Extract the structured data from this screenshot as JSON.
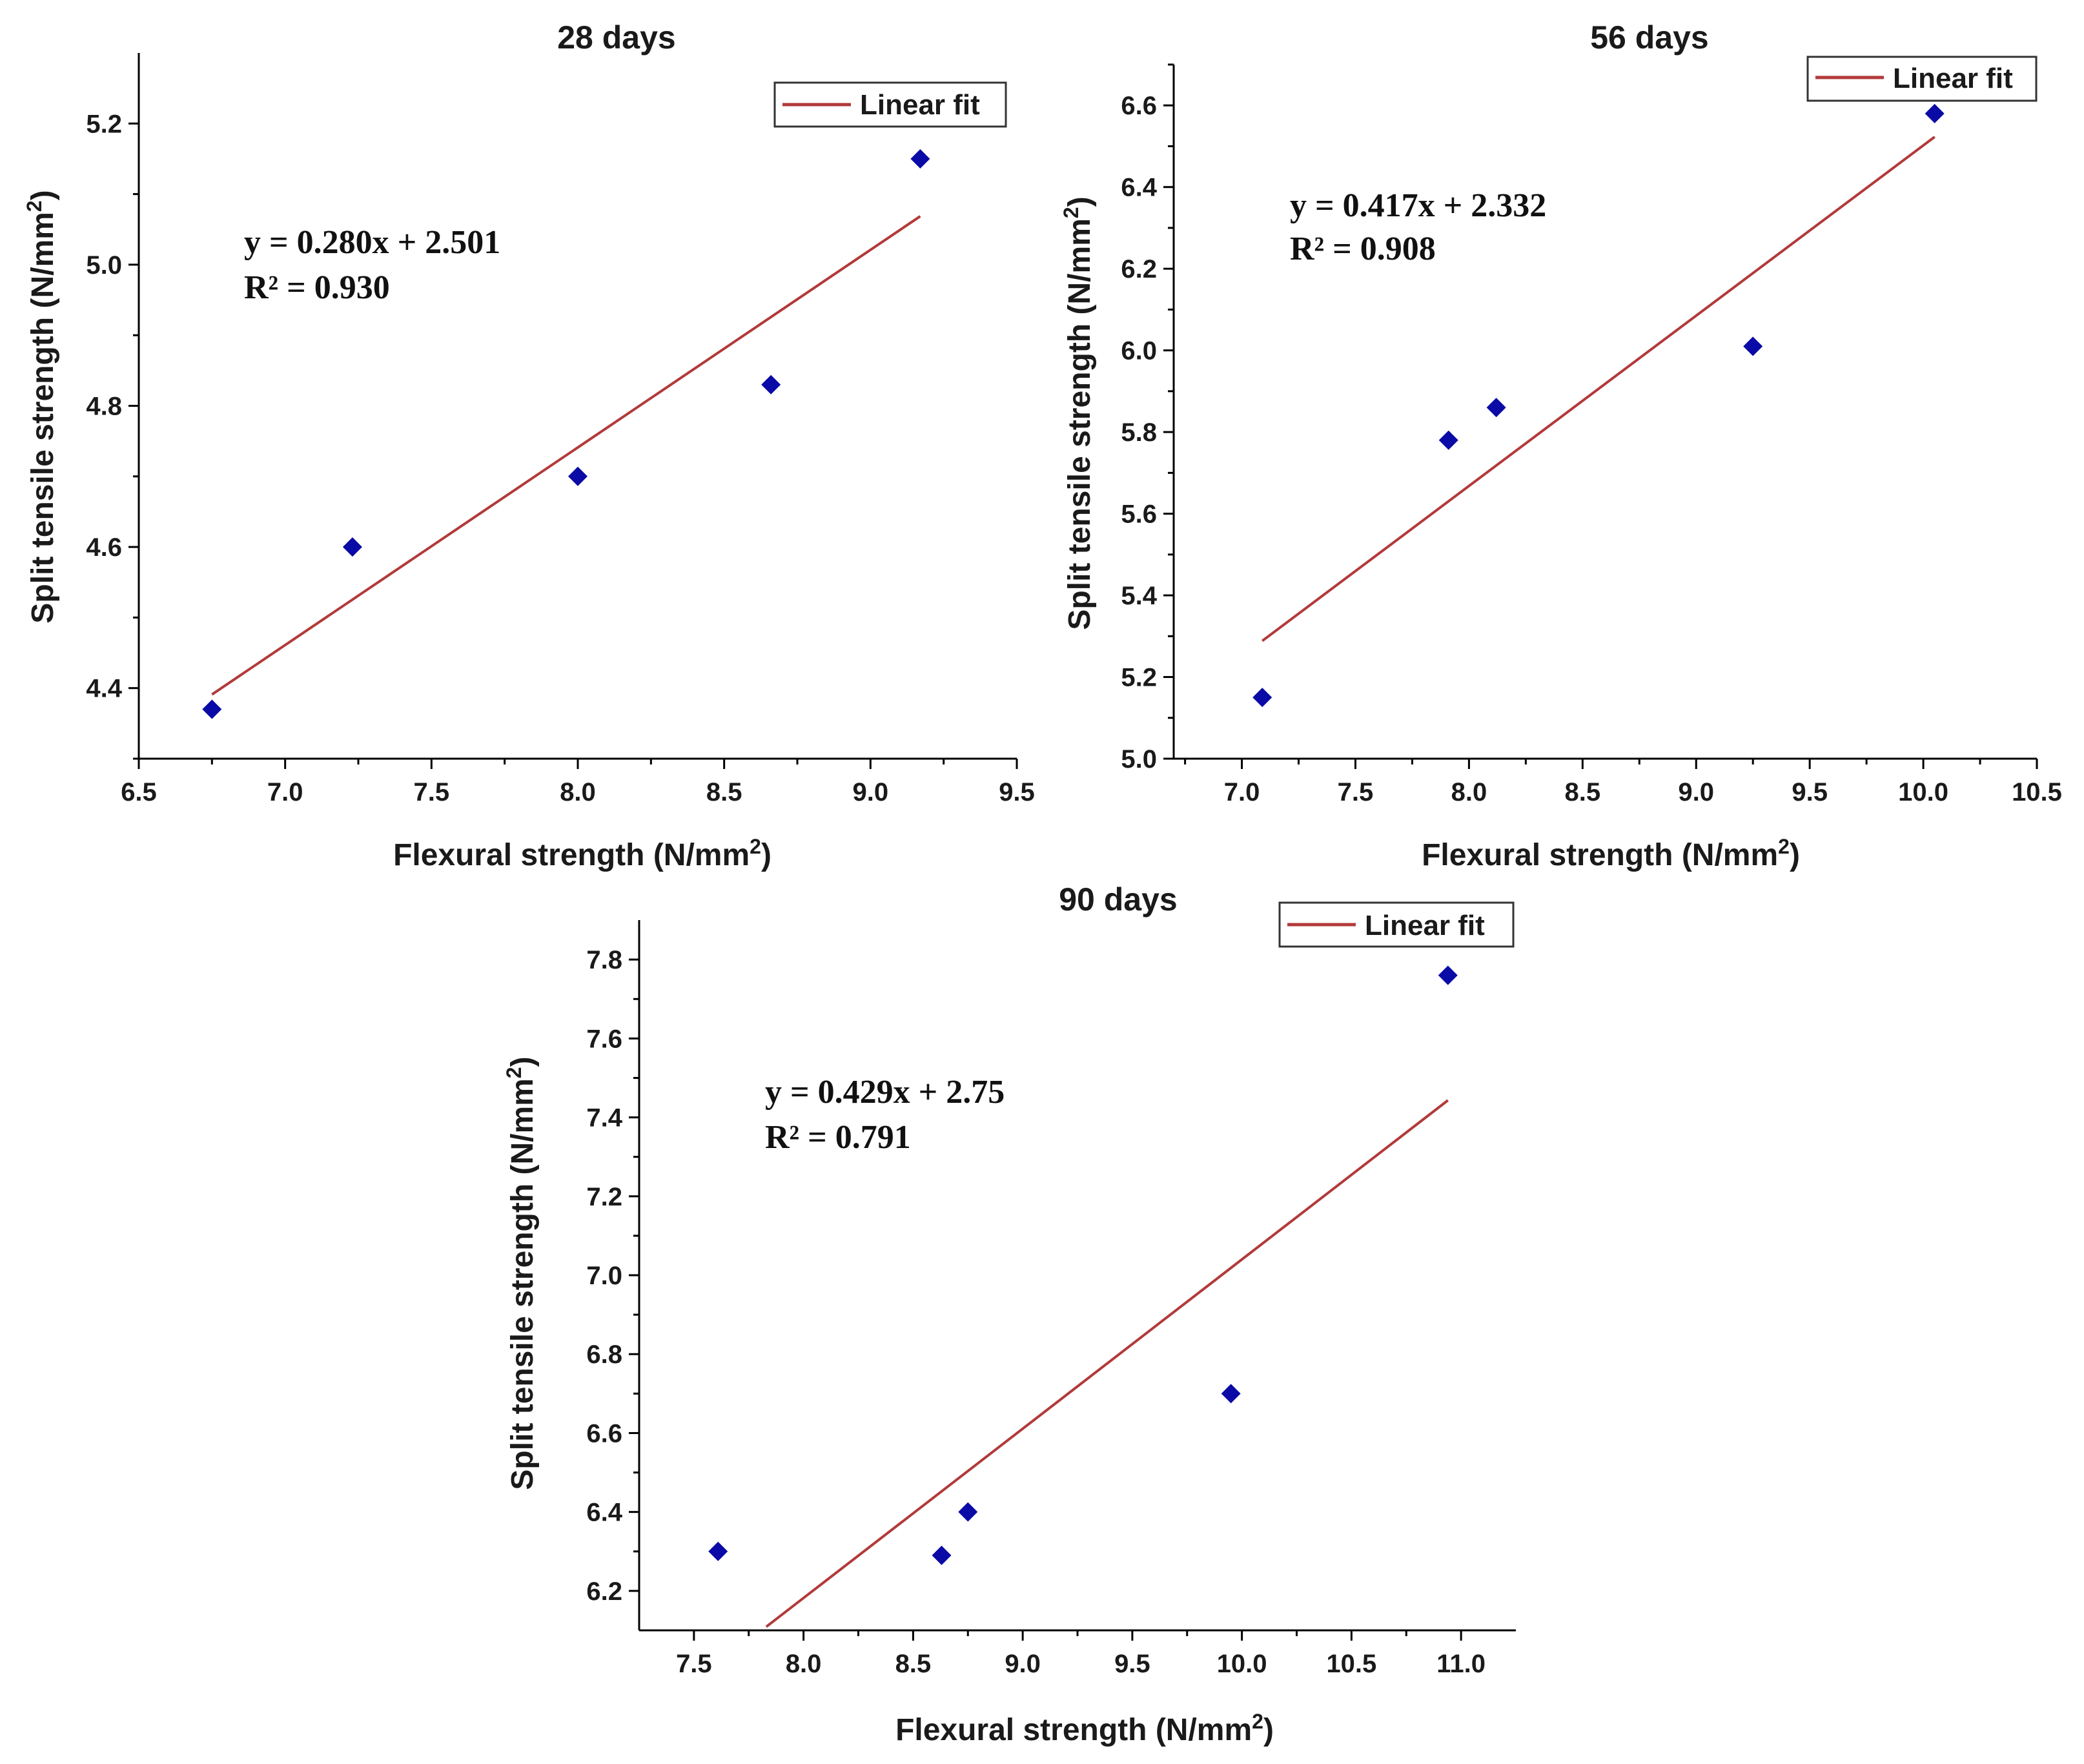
{
  "colors": {
    "point": "#0a0aa6",
    "fit": "#b23a3a",
    "axis": "#000000"
  },
  "legend_label": "Linear fit",
  "chart_data": [
    {
      "type": "scatter",
      "title": "28 days",
      "xlabel": "Flexural strength (N/mm",
      "ylabel": "Split tensile strength (N/mm",
      "unit_superscript": "2",
      "unit_close": ")",
      "xlim": [
        6.5,
        9.5
      ],
      "ylim": [
        4.3,
        5.3
      ],
      "xticks": [
        "6.5",
        "7.0",
        "7.5",
        "8.0",
        "8.5",
        "9.0",
        "9.5"
      ],
      "yticks": [
        "4.4",
        "4.6",
        "4.8",
        "5.0",
        "5.2"
      ],
      "points": [
        [
          6.75,
          4.37
        ],
        [
          7.23,
          4.6
        ],
        [
          8.0,
          4.7
        ],
        [
          8.66,
          4.83
        ],
        [
          9.17,
          5.15
        ]
      ],
      "fit": {
        "slope": 0.28,
        "intercept": 2.501,
        "x_range": [
          6.75,
          9.17
        ]
      },
      "equation": "y = 0.280x + 2.501",
      "r2": "R² = 0.930"
    },
    {
      "type": "scatter",
      "title": "56 days",
      "xlabel": "Flexural strength (N/mm",
      "ylabel": "Split tensile strength (N/mm",
      "unit_superscript": "2",
      "unit_close": ")",
      "xlim": [
        6.7,
        10.5
      ],
      "ylim": [
        5.0,
        6.7
      ],
      "xticks": [
        "7.0",
        "7.5",
        "8.0",
        "8.5",
        "9.0",
        "9.5",
        "10.0",
        "10.5"
      ],
      "yticks": [
        "5.0",
        "5.2",
        "5.4",
        "5.6",
        "5.8",
        "6.0",
        "6.2",
        "6.4",
        "6.6"
      ],
      "points": [
        [
          7.09,
          5.15
        ],
        [
          7.91,
          5.78
        ],
        [
          8.12,
          5.86
        ],
        [
          9.25,
          6.01
        ],
        [
          10.05,
          6.58
        ]
      ],
      "fit": {
        "slope": 0.417,
        "intercept": 2.332,
        "x_range": [
          7.09,
          10.05
        ]
      },
      "equation": "y = 0.417x + 2.332",
      "r2": "R² = 0.908"
    },
    {
      "type": "scatter",
      "title": "90 days",
      "xlabel": "Flexural strength (N/mm",
      "ylabel": "Split tensile strength (N/mm",
      "unit_superscript": "2",
      "unit_close": ")",
      "xlim": [
        7.25,
        11.25
      ],
      "ylim": [
        6.1,
        7.9
      ],
      "xticks": [
        "7.5",
        "8.0",
        "8.5",
        "9.0",
        "9.5",
        "10.0",
        "10.5",
        "11.0"
      ],
      "yticks": [
        "6.2",
        "6.4",
        "6.6",
        "6.8",
        "7.0",
        "7.2",
        "7.4",
        "7.6",
        "7.8"
      ],
      "points": [
        [
          7.61,
          6.3
        ],
        [
          8.63,
          6.29
        ],
        [
          8.75,
          6.4
        ],
        [
          9.95,
          6.7
        ],
        [
          10.94,
          7.76
        ]
      ],
      "fit": {
        "slope": 0.429,
        "intercept": 2.75,
        "x_range": [
          7.83,
          10.94
        ]
      },
      "equation": "y = 0.429x + 2.75",
      "r2": "R² = 0.791"
    }
  ]
}
